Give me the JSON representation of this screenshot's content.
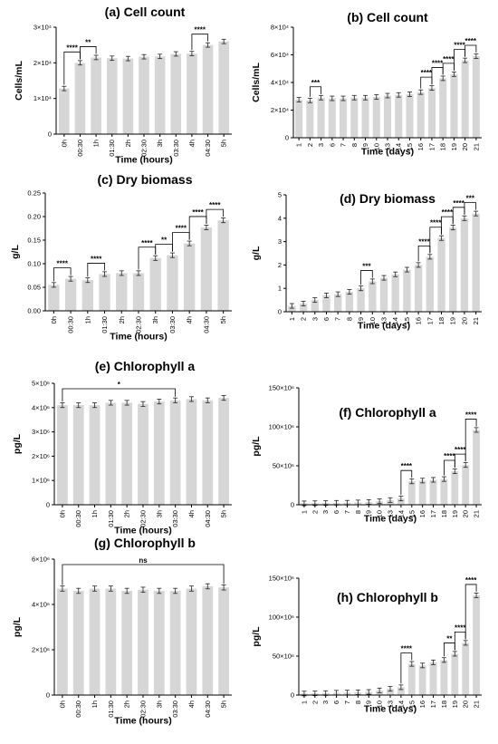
{
  "chart_data": [
    {
      "id": "a",
      "type": "bar",
      "title": "(a) Cell count",
      "xlabel": "Time (hours)",
      "ylabel": "Cells/mL",
      "categories": [
        "0h",
        "00:30",
        "1h",
        "01:30",
        "2h",
        "02:30",
        "3h",
        "03:30",
        "4h",
        "04:30",
        "5h"
      ],
      "values": [
        12800,
        20000,
        21500,
        21300,
        21200,
        21700,
        21800,
        22500,
        22600,
        25000,
        26000
      ],
      "ylim": [
        0,
        30000
      ],
      "yticks": [
        {
          "v": 0,
          "label": "0"
        },
        {
          "v": 10000,
          "label": "1×10⁴"
        },
        {
          "v": 20000,
          "label": "2×10⁴"
        },
        {
          "v": 30000,
          "label": "3×10⁴"
        }
      ],
      "sig": [
        {
          "from": 0,
          "to": 1,
          "label": "****"
        },
        {
          "from": 1,
          "to": 2,
          "label": "**"
        },
        {
          "from": 8,
          "to": 9,
          "label": "****"
        }
      ],
      "grid": false
    },
    {
      "id": "b",
      "type": "bar",
      "title": "(b) Cell count",
      "xlabel": "Time (days)",
      "ylabel": "Cells/mL",
      "categories": [
        "1",
        "2",
        "3",
        "6",
        "7",
        "8",
        "9",
        "10",
        "13",
        "14",
        "15",
        "16",
        "17",
        "18",
        "19",
        "20",
        "21"
      ],
      "values": [
        27500,
        27000,
        29000,
        28500,
        28500,
        29000,
        29000,
        29500,
        30500,
        31000,
        31500,
        33000,
        36000,
        43000,
        46000,
        56000,
        59000
      ],
      "ylim": [
        0,
        80000
      ],
      "yticks": [
        {
          "v": 0,
          "label": "0"
        },
        {
          "v": 20000,
          "label": "2×10⁴"
        },
        {
          "v": 40000,
          "label": "4×10⁴"
        },
        {
          "v": 60000,
          "label": "6×10⁴"
        },
        {
          "v": 80000,
          "label": "8×10⁴"
        }
      ],
      "sig": [
        {
          "from": 1,
          "to": 2,
          "label": "***"
        },
        {
          "from": 11,
          "to": 12,
          "label": "****"
        },
        {
          "from": 12,
          "to": 13,
          "label": "****"
        },
        {
          "from": 13,
          "to": 14,
          "label": "****"
        },
        {
          "from": 14,
          "to": 15,
          "label": "****"
        },
        {
          "from": 15,
          "to": 16,
          "label": "****"
        }
      ],
      "grid": false
    },
    {
      "id": "c",
      "type": "bar",
      "title": "(c) Dry biomass",
      "xlabel": "Time (hours)",
      "ylabel": "g/L",
      "categories": [
        "0h",
        "00:30",
        "1h",
        "01:30",
        "2h",
        "02:30",
        "3h",
        "03:30",
        "4h",
        "04:30",
        "5h"
      ],
      "values": [
        0.055,
        0.068,
        0.065,
        0.078,
        0.08,
        0.08,
        0.112,
        0.118,
        0.143,
        0.177,
        0.192
      ],
      "ylim": [
        0,
        0.25
      ],
      "yticks": [
        {
          "v": 0,
          "label": "0.00"
        },
        {
          "v": 0.05,
          "label": "0.05"
        },
        {
          "v": 0.1,
          "label": "0.10"
        },
        {
          "v": 0.15,
          "label": "0.15"
        },
        {
          "v": 0.2,
          "label": "0.20"
        },
        {
          "v": 0.25,
          "label": "0.25"
        }
      ],
      "sig": [
        {
          "from": 0,
          "to": 1,
          "label": "****"
        },
        {
          "from": 2,
          "to": 3,
          "label": "****"
        },
        {
          "from": 5,
          "to": 6,
          "label": "****"
        },
        {
          "from": 6,
          "to": 7,
          "label": "**"
        },
        {
          "from": 7,
          "to": 8,
          "label": "****"
        },
        {
          "from": 8,
          "to": 9,
          "label": "****"
        },
        {
          "from": 9,
          "to": 10,
          "label": "****"
        }
      ],
      "grid": false
    },
    {
      "id": "d",
      "type": "bar",
      "title": "(d) Dry biomass",
      "xlabel": "Time (days)",
      "ylabel": "g/L",
      "categories": [
        "1",
        "2",
        "3",
        "6",
        "7",
        "8",
        "9",
        "10",
        "13",
        "14",
        "15",
        "16",
        "17",
        "18",
        "19",
        "20",
        "21"
      ],
      "values": [
        0.25,
        0.35,
        0.5,
        0.7,
        0.75,
        0.85,
        1.0,
        1.3,
        1.45,
        1.6,
        1.8,
        2.0,
        2.35,
        3.15,
        3.6,
        4.0,
        4.2
      ],
      "ylim": [
        0,
        5
      ],
      "yticks": [
        {
          "v": 0,
          "label": "0"
        },
        {
          "v": 1,
          "label": "1"
        },
        {
          "v": 2,
          "label": "2"
        },
        {
          "v": 3,
          "label": "3"
        },
        {
          "v": 4,
          "label": "4"
        },
        {
          "v": 5,
          "label": "5"
        }
      ],
      "sig": [
        {
          "from": 6,
          "to": 7,
          "label": "***"
        },
        {
          "from": 11,
          "to": 12,
          "label": "****"
        },
        {
          "from": 12,
          "to": 13,
          "label": "****"
        },
        {
          "from": 13,
          "to": 14,
          "label": "****"
        },
        {
          "from": 14,
          "to": 15,
          "label": "****"
        },
        {
          "from": 15,
          "to": 16,
          "label": "***"
        }
      ],
      "grid": false
    },
    {
      "id": "e",
      "type": "bar",
      "title": "(e) Chlorophyll a",
      "xlabel": "Time (hours)",
      "ylabel": "pg/L",
      "categories": [
        "0h",
        "00:30",
        "1h",
        "01:30",
        "2h",
        "02:30",
        "3h",
        "03:30",
        "4h",
        "04:30",
        "5h"
      ],
      "values": [
        4100000,
        4100000,
        4100000,
        4200000,
        4200000,
        4150000,
        4250000,
        4300000,
        4350000,
        4300000,
        4400000
      ],
      "ylim": [
        0,
        5000000
      ],
      "yticks": [
        {
          "v": 0,
          "label": "0"
        },
        {
          "v": 1000000,
          "label": "1×10⁶"
        },
        {
          "v": 2000000,
          "label": "2×10⁶"
        },
        {
          "v": 3000000,
          "label": "3×10⁶"
        },
        {
          "v": 4000000,
          "label": "4×10⁶"
        },
        {
          "v": 5000000,
          "label": "5×10⁶"
        }
      ],
      "sig": [
        {
          "from": 0,
          "to": 7,
          "label": "*"
        }
      ],
      "grid": false
    },
    {
      "id": "f",
      "type": "bar",
      "title": "(f) Chlorophyll a",
      "xlabel": "Time (days)",
      "ylabel": "pg/L",
      "categories": [
        "1",
        "2",
        "3",
        "6",
        "7",
        "8",
        "9",
        "10",
        "13",
        "14",
        "15",
        "16",
        "17",
        "18",
        "19",
        "20",
        "21"
      ],
      "values": [
        1800000,
        2000000,
        2200000,
        2500000,
        2600000,
        3000000,
        3500000,
        4500000,
        6000000,
        8000000,
        30000000,
        31000000,
        32000000,
        33000000,
        43000000,
        51000000,
        96000000
      ],
      "ylim": [
        0,
        150000000
      ],
      "yticks": [
        {
          "v": 0,
          "label": "0"
        },
        {
          "v": 50000000,
          "label": "50×10⁶"
        },
        {
          "v": 100000000,
          "label": "100×10⁶"
        },
        {
          "v": 150000000,
          "label": "150×10⁶"
        }
      ],
      "sig": [
        {
          "from": 9,
          "to": 10,
          "label": "****"
        },
        {
          "from": 13,
          "to": 14,
          "label": "****"
        },
        {
          "from": 14,
          "to": 15,
          "label": "****"
        },
        {
          "from": 15,
          "to": 16,
          "label": "****"
        }
      ],
      "grid": false
    },
    {
      "id": "g",
      "type": "bar",
      "title": "(g) Chlorophyll b",
      "xlabel": "Time (hours)",
      "ylabel": "pg/L",
      "categories": [
        "0h",
        "00:30",
        "1h",
        "01:30",
        "2h",
        "02:30",
        "3h",
        "03:30",
        "4h",
        "04:30",
        "5h"
      ],
      "values": [
        4700000,
        4600000,
        4700000,
        4700000,
        4600000,
        4650000,
        4600000,
        4600000,
        4700000,
        4800000,
        4750000
      ],
      "ylim": [
        0,
        6000000
      ],
      "yticks": [
        {
          "v": 0,
          "label": "0"
        },
        {
          "v": 2000000,
          "label": "2×10⁶"
        },
        {
          "v": 4000000,
          "label": "4×10⁶"
        },
        {
          "v": 6000000,
          "label": "6×10⁶"
        }
      ],
      "sig": [
        {
          "from": 0,
          "to": 10,
          "label": "ns"
        }
      ],
      "grid": false
    },
    {
      "id": "h",
      "type": "bar",
      "title": "(h) Chlorophyll b",
      "xlabel": "Time (days)",
      "ylabel": "pg/L",
      "categories": [
        "1",
        "2",
        "3",
        "6",
        "7",
        "8",
        "9",
        "10",
        "13",
        "14",
        "15",
        "16",
        "17",
        "18",
        "19",
        "20",
        "21"
      ],
      "values": [
        2000000,
        2200000,
        2500000,
        3000000,
        3200000,
        3500000,
        4000000,
        6000000,
        8000000,
        10000000,
        40000000,
        38000000,
        42000000,
        45000000,
        53000000,
        67000000,
        128000000
      ],
      "ylim": [
        0,
        150000000
      ],
      "yticks": [
        {
          "v": 0,
          "label": "0"
        },
        {
          "v": 50000000,
          "label": "50×10⁶"
        },
        {
          "v": 100000000,
          "label": "100×10⁶"
        },
        {
          "v": 150000000,
          "label": "150×10⁶"
        }
      ],
      "sig": [
        {
          "from": 9,
          "to": 10,
          "label": "****"
        },
        {
          "from": 13,
          "to": 14,
          "label": "**"
        },
        {
          "from": 14,
          "to": 15,
          "label": "****"
        },
        {
          "from": 15,
          "to": 16,
          "label": "****"
        }
      ],
      "grid": false
    }
  ],
  "colors": {
    "bar": "#d6d6d6",
    "axis": "#000000",
    "error": "#222222"
  }
}
